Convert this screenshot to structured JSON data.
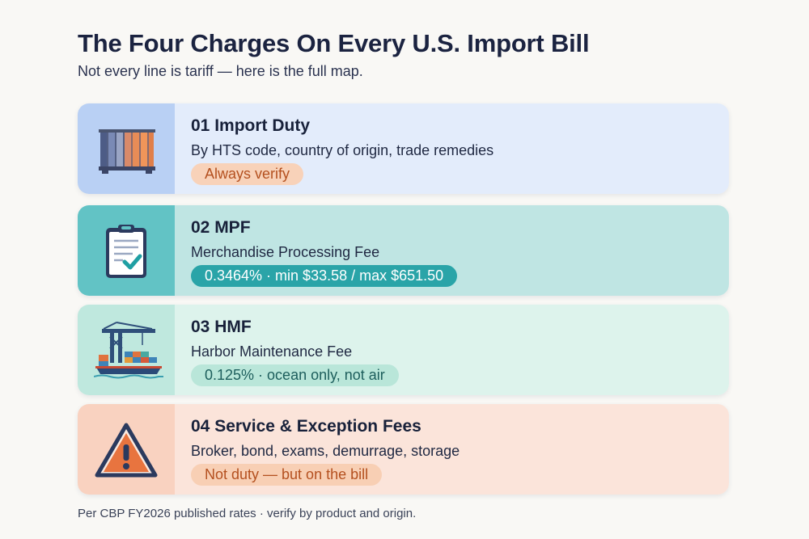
{
  "header": {
    "title": "The Four Charges On Every U.S. Import Bill",
    "subtitle": "Not every line is tariff — here is the full map."
  },
  "cards": [
    {
      "title": "01  Import Duty",
      "description": "By HTS code, country of origin, trade remedies",
      "pill": "Always verify",
      "icon": "shipping-container-icon"
    },
    {
      "title": "02  MPF",
      "description": "Merchandise Processing Fee",
      "pill": "0.3464% · min $33.58 / max $651.50",
      "icon": "clipboard-check-icon"
    },
    {
      "title": "03  HMF",
      "description": "Harbor Maintenance Fee",
      "pill": "0.125% · ocean only, not air",
      "icon": "port-crane-ship-icon"
    },
    {
      "title": "04  Service & Exception Fees",
      "description": "Broker, bond, exams, demurrage, storage",
      "pill": "Not duty — but on the bill",
      "icon": "warning-triangle-icon"
    }
  ],
  "footer": {
    "note": "Per CBP FY2026 published rates · verify by product and origin."
  },
  "colors": {
    "title": "#1b2340",
    "accent_orange": "#b4501f",
    "accent_teal": "#2aa4a8",
    "card1_bg": "#e3ecfb",
    "card2_bg": "#bfe5e3",
    "card3_bg": "#ddf3ec",
    "card4_bg": "#fbe4da"
  }
}
